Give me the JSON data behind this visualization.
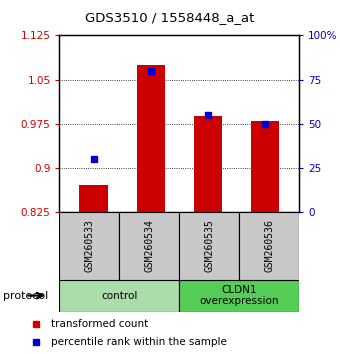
{
  "title": "GDS3510 / 1558448_a_at",
  "samples": [
    "GSM260533",
    "GSM260534",
    "GSM260535",
    "GSM260536"
  ],
  "bar_values": [
    0.872,
    1.075,
    0.988,
    0.98
  ],
  "percentile_pct": [
    30,
    80,
    55,
    50
  ],
  "bar_color": "#cc0000",
  "marker_color": "#0000cc",
  "ylim_left": [
    0.825,
    1.125
  ],
  "ylim_right": [
    0,
    100
  ],
  "yticks_left": [
    0.825,
    0.9,
    0.975,
    1.05,
    1.125
  ],
  "yticks_right": [
    0,
    25,
    50,
    75,
    100
  ],
  "ytick_labels_right": [
    "0",
    "25",
    "50",
    "75",
    "100%"
  ],
  "groups": [
    {
      "label": "control",
      "start": 0,
      "end": 2,
      "color": "#aaddaa"
    },
    {
      "label": "CLDN1\noverexpression",
      "start": 2,
      "end": 4,
      "color": "#55cc55"
    }
  ],
  "legend_items": [
    {
      "label": "transformed count",
      "color": "#cc0000"
    },
    {
      "label": "percentile rank within the sample",
      "color": "#0000cc"
    }
  ],
  "protocol_label": "protocol",
  "gray_color": "#c8c8c8",
  "axis_label_color_left": "#cc0000",
  "axis_label_color_right": "#0000cc",
  "bar_width": 0.5
}
